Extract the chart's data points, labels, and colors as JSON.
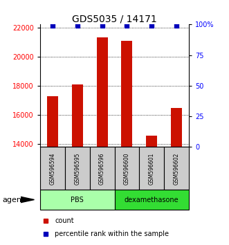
{
  "title": "GDS5035 / 14171",
  "samples": [
    "GSM596594",
    "GSM596595",
    "GSM596596",
    "GSM596600",
    "GSM596601",
    "GSM596602"
  ],
  "counts": [
    17300,
    18100,
    21300,
    21100,
    14600,
    16500
  ],
  "percentile_val": 99,
  "ylim_left": [
    13800,
    22200
  ],
  "ylim_right": [
    0,
    100
  ],
  "yticks_left": [
    14000,
    16000,
    18000,
    20000,
    22000
  ],
  "yticks_right": [
    0,
    25,
    50,
    75,
    100
  ],
  "bar_color": "#cc1100",
  "dot_color": "#0000bb",
  "groups": [
    {
      "label": "PBS",
      "color": "#aaffaa",
      "darker": "#33cc33"
    },
    {
      "label": "dexamethasone",
      "color": "#33dd33",
      "darker": "#33cc33"
    }
  ],
  "sample_box_color": "#cccccc",
  "legend_count_color": "#cc1100",
  "legend_pct_color": "#0000bb",
  "agent_label": "agent",
  "bar_width": 0.45,
  "font_size_title": 10,
  "font_size_ticks": 7,
  "font_size_sample": 5.5,
  "font_size_group": 7,
  "font_size_legend": 7,
  "font_size_agent": 8
}
